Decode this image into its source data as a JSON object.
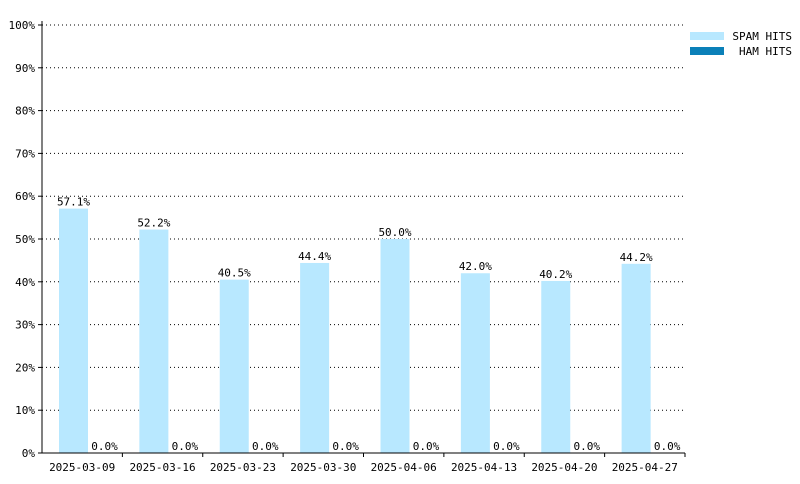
{
  "chart_data": {
    "type": "bar",
    "categories": [
      "2025-03-09",
      "2025-03-16",
      "2025-03-23",
      "2025-03-30",
      "2025-04-06",
      "2025-04-13",
      "2025-04-20",
      "2025-04-27"
    ],
    "series": [
      {
        "name": "SPAM HITS",
        "color": "#b8e8ff",
        "values": [
          57.1,
          52.2,
          40.5,
          44.4,
          50.0,
          42.0,
          40.2,
          44.2
        ],
        "labels": [
          "57.1%",
          "52.2%",
          "40.5%",
          "44.4%",
          "50.0%",
          "42.0%",
          "40.2%",
          "44.2%"
        ]
      },
      {
        "name": "HAM HITS",
        "color": "#0b80b8",
        "values": [
          0,
          0,
          0,
          0,
          0,
          0,
          0,
          0
        ],
        "labels": [
          "0.0%",
          "0.0%",
          "0.0%",
          "0.0%",
          "0.0%",
          "0.0%",
          "0.0%",
          "0.0%"
        ]
      }
    ],
    "yticks": [
      0,
      10,
      20,
      30,
      40,
      50,
      60,
      70,
      80,
      90,
      100
    ],
    "ytick_labels": [
      "0%",
      "10%",
      "20%",
      "30%",
      "40%",
      "50%",
      "60%",
      "70%",
      "80%",
      "90%",
      "100%"
    ],
    "ylim": [
      0,
      100
    ],
    "grid": true,
    "legend_position": "top-right"
  }
}
